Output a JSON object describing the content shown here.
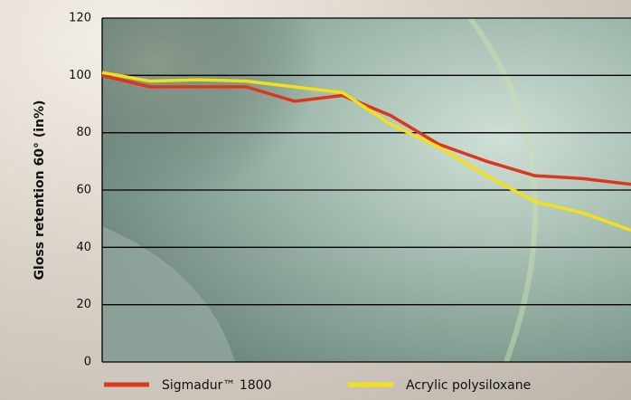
{
  "chart_data": {
    "type": "line",
    "y_label": "Gloss retention 60° (in%)",
    "categories": [
      null,
      null,
      null,
      null,
      null,
      null,
      null,
      null,
      null,
      null,
      null,
      null
    ],
    "series": [
      {
        "name": "Sigmadur™ 1800",
        "color": "#d9381e",
        "values": [
          100,
          96,
          96,
          96,
          91,
          93,
          86,
          76,
          70,
          65,
          64,
          62
        ]
      },
      {
        "name": "Acrylic polysiloxane",
        "color": "#f2e01a",
        "values": [
          101,
          98,
          98.5,
          98,
          96,
          94,
          83,
          75,
          65,
          56,
          52,
          46
        ]
      }
    ],
    "ylim": [
      0,
      120
    ],
    "yticks": [
      0,
      20,
      40,
      60,
      80,
      100,
      120
    ],
    "grid": true
  }
}
